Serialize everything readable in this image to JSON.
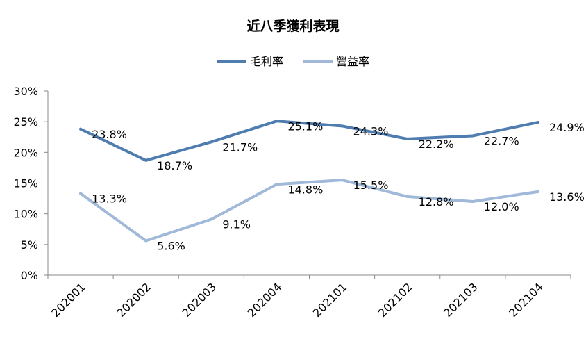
{
  "chart_data": {
    "type": "line",
    "title": "近八季獲利表現",
    "categories": [
      "2020Q1",
      "2020Q2",
      "2020Q3",
      "2020Q4",
      "2021Q1",
      "2021Q2",
      "2021Q3",
      "2021Q4"
    ],
    "category_labels": [
      "202001",
      "202002",
      "202003",
      "202004",
      "202101",
      "202102",
      "202103",
      "202104"
    ],
    "series": [
      {
        "name": "毛利率",
        "color": "#4f7db0",
        "values": [
          23.8,
          18.7,
          21.7,
          25.1,
          24.3,
          22.2,
          22.7,
          24.9
        ],
        "labels": [
          "23.8%",
          "18.7%",
          "21.7%",
          "25.1%",
          "24.3%",
          "22.2%",
          "22.7%",
          "24.9%"
        ]
      },
      {
        "name": "營益率",
        "color": "#a0b9d9",
        "values": [
          13.3,
          5.6,
          9.1,
          14.8,
          15.5,
          12.8,
          12.0,
          13.6
        ],
        "labels": [
          "13.3%",
          "5.6%",
          "9.1%",
          "14.8%",
          "15.5%",
          "12.8%",
          "12.0%",
          "13.6%"
        ]
      }
    ],
    "y_ticks": [
      "0%",
      "5%",
      "10%",
      "15%",
      "20%",
      "25%",
      "30%"
    ],
    "ylim": [
      0,
      30
    ],
    "y_unit": "%",
    "grid": false,
    "legend_position": "top-center"
  }
}
